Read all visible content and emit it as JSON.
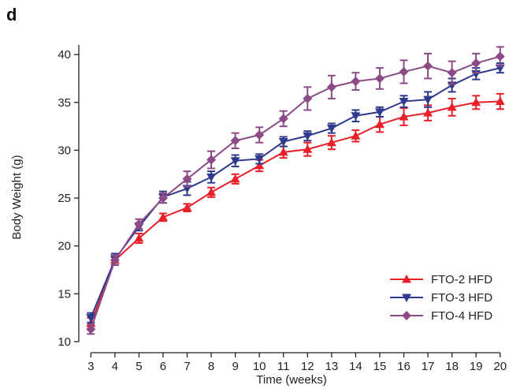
{
  "panel_label": "d",
  "chart_data": {
    "type": "line",
    "title": "",
    "xlabel": "Time (weeks)",
    "ylabel": "Body Weight (g)",
    "x": [
      3,
      4,
      5,
      6,
      7,
      8,
      9,
      10,
      11,
      12,
      13,
      14,
      15,
      16,
      17,
      18,
      19,
      20
    ],
    "xlim": [
      2.5,
      20.5
    ],
    "ylim": [
      10,
      41
    ],
    "yticks": [
      10,
      15,
      20,
      25,
      30,
      35,
      40
    ],
    "grid": false,
    "legend_position": "bottom-right",
    "series": [
      {
        "name": "FTO-2 HFD",
        "marker": "triangle-up",
        "color": "#e8202a",
        "values": [
          11.9,
          18.5,
          20.8,
          23.0,
          24.0,
          25.6,
          27.0,
          28.4,
          29.8,
          30.1,
          30.8,
          31.5,
          32.7,
          33.5,
          33.9,
          34.5,
          35.0,
          35.1
        ],
        "errors": [
          0.6,
          0.5,
          0.5,
          0.4,
          0.4,
          0.5,
          0.5,
          0.6,
          0.6,
          0.7,
          0.7,
          0.6,
          0.8,
          0.9,
          0.8,
          0.9,
          0.7,
          0.8
        ]
      },
      {
        "name": "FTO-3 HFD",
        "marker": "triangle-down",
        "color": "#2e3a8c",
        "values": [
          12.5,
          18.6,
          22.0,
          25.1,
          26.0,
          27.2,
          28.9,
          29.1,
          30.9,
          31.5,
          32.3,
          33.6,
          34.0,
          35.1,
          35.3,
          36.8,
          38.0,
          38.6
        ],
        "errors": [
          0.5,
          0.6,
          0.4,
          0.6,
          0.7,
          0.6,
          0.6,
          0.5,
          0.5,
          0.5,
          0.5,
          0.6,
          0.5,
          0.6,
          0.8,
          0.7,
          0.6,
          0.5
        ]
      },
      {
        "name": "FTO-4 HFD",
        "marker": "diamond",
        "color": "#8c4b86",
        "values": [
          11.3,
          18.5,
          22.3,
          25.0,
          27.0,
          29.0,
          31.0,
          31.6,
          33.3,
          35.4,
          36.6,
          37.2,
          37.5,
          38.2,
          38.8,
          38.1,
          39.1,
          39.8
        ],
        "errors": [
          0.5,
          0.5,
          0.5,
          0.5,
          0.8,
          0.9,
          0.8,
          0.8,
          0.8,
          1.2,
          1.2,
          0.9,
          1.1,
          1.2,
          1.3,
          1.2,
          1.0,
          1.0
        ]
      }
    ]
  }
}
